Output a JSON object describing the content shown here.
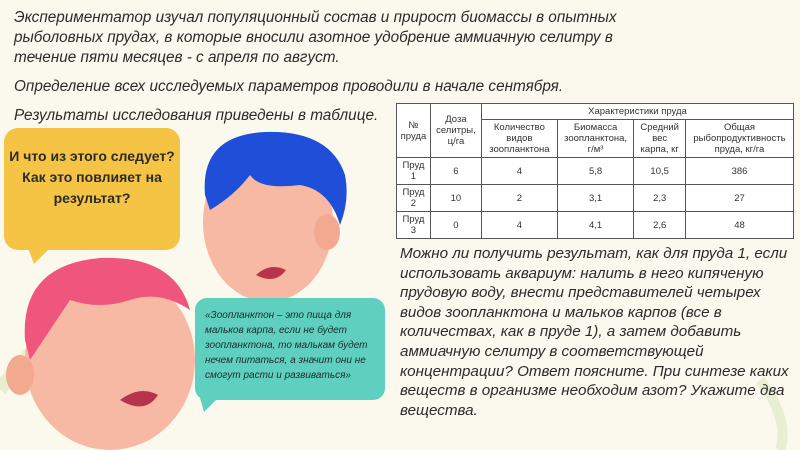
{
  "intro": {
    "p1": "Экспериментатор изучал популяционный состав и прирост биомассы в опытных рыболовных прудах, в которые вносили азотное удобрение аммиачную селитру в течение пяти месяцев - с апреля по август.",
    "p2": "Определение всех исследуемых параметров проводили в начале сентября.",
    "p3": "Результаты исследования приведены в таблице."
  },
  "table": {
    "h_no": "№ пруда",
    "h_dose": "Доза селитры, ц/га",
    "h_group": "Характеристики пруда",
    "cols": [
      "Количество видов зоопланктона",
      "Биомасса зоопланктона, г/м³",
      "Средний вес карпа, кг",
      "Общая рыбопродуктивность пруда, кг/га"
    ],
    "rows": [
      [
        "Пруд 1",
        "6",
        "4",
        "5,8",
        "10,5",
        "386"
      ],
      [
        "Пруд 2",
        "10",
        "2",
        "3,1",
        "2,3",
        "27"
      ],
      [
        "Пруд 3",
        "0",
        "4",
        "4,1",
        "2,6",
        "48"
      ]
    ]
  },
  "question": "Можно ли получить результат, как для пруда 1, если использовать аквариум: налить в него кипяченую прудовую воду, внести представителей четырех видов зоопланктона и мальков карпов (все в количествах, как в пруде 1), а затем добавить аммиачную селитру в соответствующей концентрации? Ответ поясните. При синтезе каких веществ в организме необходим азот? Укажите два вещества.",
  "yellow_bubble": "И что из этого следует? Как это повлияет на результат?",
  "teal_bubble": "«Зоопланктон – это пища для мальков карпа, если не будет зоопланктона, то малькам будет нечем питаться, а значит они не смогут расти и развиваться»",
  "colors": {
    "yellow": "#f6c444",
    "teal": "#5fcfbf",
    "blue_hair": "#1f4fd8",
    "pink_hair": "#f0557e",
    "skin": "#f7b9a3"
  }
}
